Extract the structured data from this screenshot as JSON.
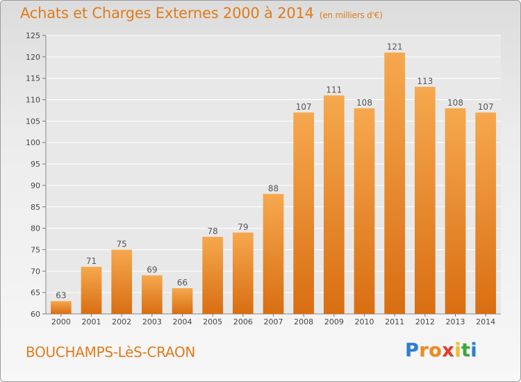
{
  "title": "Achats et Charges Externes 2000 à 2014",
  "unit_note": "(en milliers d'€)",
  "commune": "BOUCHAMPS-LèS-CRAON",
  "brand": {
    "text": "Proxiti",
    "letters": [
      "P",
      "r",
      "o",
      "x",
      "i",
      "t",
      "i"
    ],
    "colors": [
      "#2a7fd0",
      "#f08a1a",
      "#f08a1a",
      "#e03c2a",
      "#f0c020",
      "#3aa83a",
      "#2a7fd0"
    ]
  },
  "colors": {
    "bar_top": "#f6a84e",
    "bar_bottom": "#d96e12",
    "accent": "#e07b1a",
    "plot_bg": "#e8e8e8"
  },
  "chart_data": {
    "type": "bar",
    "title": "Achats et Charges Externes 2000 à 2014",
    "categories": [
      "2000",
      "2001",
      "2002",
      "2003",
      "2004",
      "2005",
      "2006",
      "2007",
      "2008",
      "2009",
      "2010",
      "2011",
      "2012",
      "2013",
      "2014"
    ],
    "values": [
      63,
      71,
      75,
      69,
      66,
      78,
      79,
      88,
      107,
      111,
      108,
      121,
      113,
      108,
      107
    ],
    "value_labels": [
      "63",
      "71",
      "75",
      "69",
      "66",
      "78",
      "79",
      "88",
      "107",
      "111",
      "108",
      "121",
      "113",
      "108",
      "107"
    ],
    "ylim": [
      60,
      125
    ],
    "yticks": [
      "60",
      "65",
      "70",
      "75",
      "80",
      "85",
      "90",
      "95",
      "100",
      "105",
      "110",
      "115",
      "120",
      "125"
    ],
    "grid": true,
    "xlabel": "",
    "ylabel": ""
  }
}
